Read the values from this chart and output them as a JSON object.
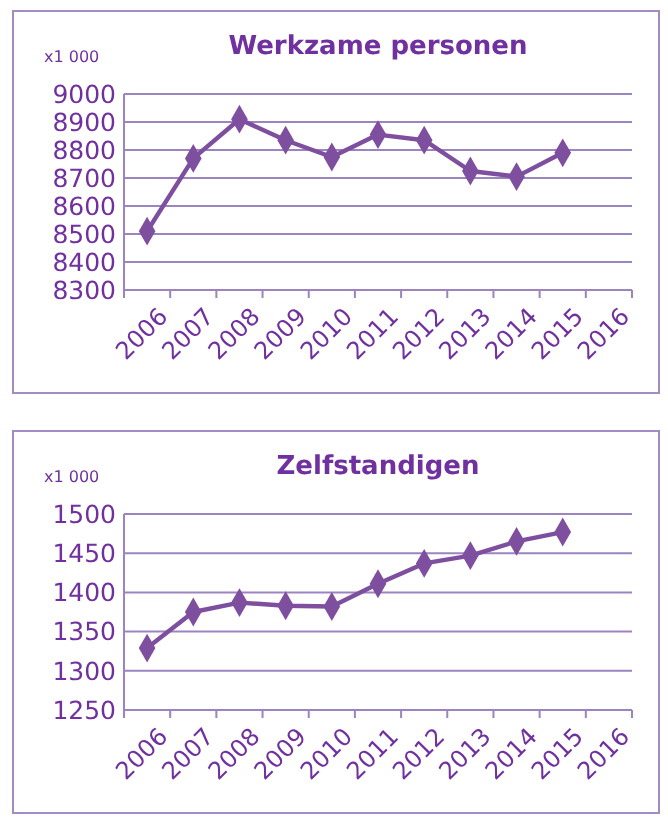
{
  "chart_data": [
    {
      "type": "line",
      "title": "Werkzame personen",
      "ylabel": "x1 000",
      "categories": [
        "2006",
        "2007",
        "2008",
        "2009",
        "2010",
        "2011",
        "2012",
        "2013",
        "2014",
        "2015",
        "2016"
      ],
      "series": [
        {
          "color": "#7f4f9f",
          "values": [
            8510,
            8770,
            8910,
            8835,
            8775,
            8855,
            8835,
            8725,
            8705,
            8790,
            null
          ]
        }
      ],
      "ylim": [
        8300,
        9000
      ],
      "yticks": [
        8300,
        8400,
        8500,
        8600,
        8700,
        8800,
        8900,
        9000
      ],
      "grid": "y",
      "marker": "diamond",
      "line_style": "solid"
    },
    {
      "type": "line",
      "title": "Zelfstandigen",
      "ylabel": "x1 000",
      "categories": [
        "2006",
        "2007",
        "2008",
        "2009",
        "2010",
        "2011",
        "2012",
        "2013",
        "2014",
        "2015",
        "2016"
      ],
      "series": [
        {
          "color": "#7f4f9f",
          "values": [
            1329,
            1375,
            1387,
            1383,
            1382,
            1411,
            1437,
            1447,
            1465,
            1477,
            null
          ]
        }
      ],
      "ylim": [
        1250,
        1500
      ],
      "yticks": [
        1250,
        1300,
        1350,
        1400,
        1450,
        1500
      ],
      "grid": "y",
      "marker": "diamond",
      "line_style": "solid"
    }
  ]
}
